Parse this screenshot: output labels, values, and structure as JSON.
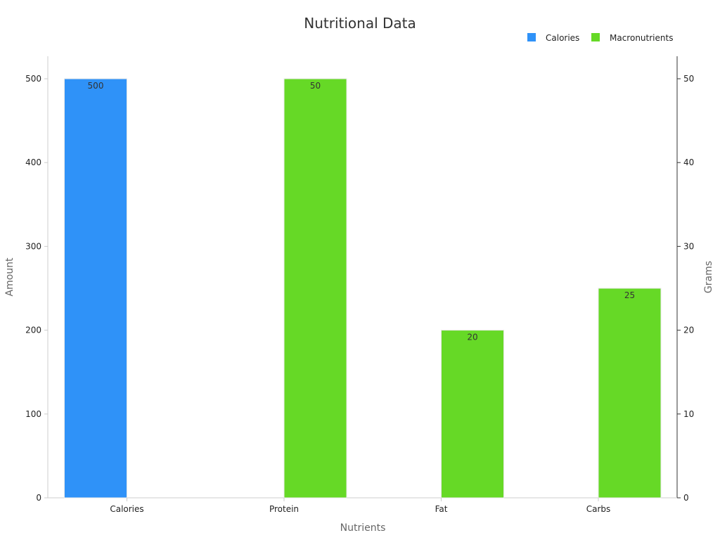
{
  "chart_data": {
    "type": "bar",
    "title": "Nutritional Data",
    "xlabel": "Nutrients",
    "ylabel": "Amount",
    "y2label": "Grams",
    "categories": [
      "Calories",
      "Protein",
      "Fat",
      "Carbs"
    ],
    "ylim": [
      0,
      525
    ],
    "y2lim": [
      0,
      52.5
    ],
    "yticks": [
      0,
      100,
      200,
      300,
      400,
      500
    ],
    "y2ticks": [
      0,
      10,
      20,
      30,
      40,
      50
    ],
    "grid": false,
    "legend_position": "top-right",
    "series": [
      {
        "name": "Calories",
        "axis": "left",
        "color": "#2f92f8",
        "values": [
          500,
          null,
          null,
          null
        ],
        "labels": [
          "500",
          "",
          "",
          ""
        ]
      },
      {
        "name": "Macronutrients",
        "axis": "right",
        "color": "#66d926",
        "values": [
          null,
          50,
          20,
          25
        ],
        "labels": [
          "",
          "50",
          "20",
          "25"
        ]
      }
    ]
  }
}
